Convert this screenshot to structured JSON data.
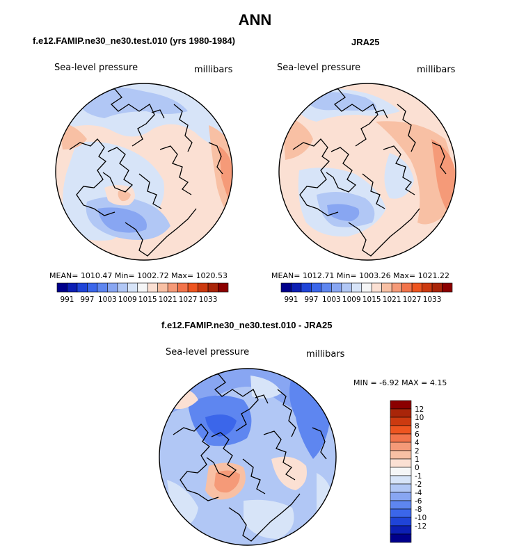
{
  "page_title": "ANN",
  "colors": {
    "blues": [
      "#00008b",
      "#0c1fb4",
      "#1f44d8",
      "#3b66ea",
      "#5e86f0",
      "#88a6f2",
      "#b1c7f5",
      "#d7e4f8"
    ],
    "neutral": "#f5f6f7",
    "reds": [
      "#fbe0d3",
      "#f8c0a4",
      "#f59a78",
      "#f2744b",
      "#ee5520",
      "#cc3a10",
      "#a92509",
      "#8b0000"
    ]
  },
  "chart_data": [
    {
      "type": "polar-contour-map",
      "title": "f.e12.FAMIP.ne30_ne30.test.010 (yrs 1980-1984)",
      "variable": "Sea-level pressure",
      "units": "millibars",
      "stats_text": "MEAN= 1010.47   Min= 1002.72   Max= 1020.53",
      "stats": {
        "mean": 1010.47,
        "min": 1002.72,
        "max": 1020.53
      },
      "colorbar_levels": [
        "991",
        "997",
        "1003",
        "1009",
        "1015",
        "1021",
        "1027",
        "1033"
      ]
    },
    {
      "type": "polar-contour-map",
      "title": "JRA25",
      "variable": "Sea-level pressure",
      "units": "millibars",
      "stats_text": "MEAN= 1012.71   Min= 1003.26   Max= 1021.22",
      "stats": {
        "mean": 1012.71,
        "min": 1003.26,
        "max": 1021.22
      },
      "colorbar_levels": [
        "991",
        "997",
        "1003",
        "1009",
        "1015",
        "1021",
        "1027",
        "1033"
      ]
    },
    {
      "type": "polar-contour-map",
      "title": "f.e12.FAMIP.ne30_ne30.test.010 - JRA25",
      "variable": "Sea-level pressure",
      "units": "millibars",
      "stats_text": "MIN =   -6.92  MAX =    4.15",
      "stats": {
        "min": -6.92,
        "max": 4.15
      },
      "colorbar_levels": [
        "12",
        "10",
        "8",
        "6",
        "4",
        "2",
        "1",
        "0",
        "-1",
        "-2",
        "-4",
        "-6",
        "-8",
        "-10",
        "-12"
      ]
    }
  ]
}
